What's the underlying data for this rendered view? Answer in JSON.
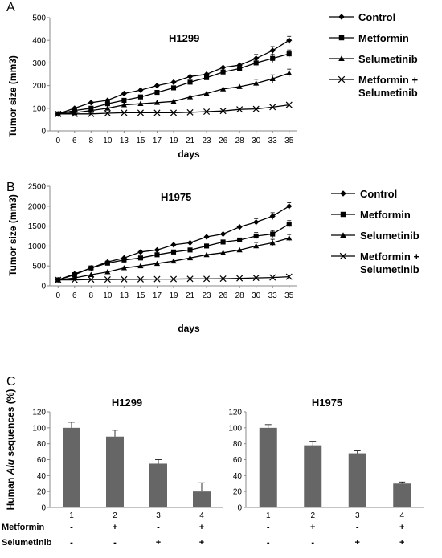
{
  "panels": [
    "A",
    "B",
    "C"
  ],
  "legend": {
    "control": "Control",
    "metformin": "Metformin",
    "selumetinib": "Selumetinib",
    "combo_line1": "Metformin +",
    "combo_line2": "Selumetinib"
  },
  "growth_days": [
    "0",
    "6",
    "8",
    "10",
    "13",
    "15",
    "17",
    "19",
    "21",
    "23",
    "26",
    "28",
    "30",
    "33",
    "35"
  ],
  "chart_data": [
    {
      "type": "line",
      "panel": "A",
      "title": "H1299",
      "xlabel": "days",
      "ylabel": "Tumor size (mm3)",
      "ylim": [
        0,
        500
      ],
      "yticks": [
        0,
        100,
        200,
        300,
        400,
        500
      ],
      "legend_position": "right",
      "series": [
        {
          "name": "Control",
          "marker": "diamond",
          "values": [
            75,
            100,
            125,
            135,
            165,
            180,
            200,
            215,
            240,
            250,
            280,
            290,
            320,
            355,
            400
          ]
        },
        {
          "name": "Metformin",
          "marker": "square",
          "values": [
            75,
            90,
            100,
            120,
            135,
            150,
            170,
            190,
            215,
            235,
            260,
            275,
            300,
            320,
            340
          ]
        },
        {
          "name": "Selumetinib",
          "marker": "triangle",
          "values": [
            75,
            80,
            90,
            100,
            115,
            120,
            125,
            130,
            150,
            165,
            185,
            195,
            210,
            230,
            255
          ]
        },
        {
          "name": "Metformin + Selumetinib",
          "marker": "x",
          "values": [
            75,
            75,
            75,
            78,
            80,
            80,
            80,
            80,
            82,
            85,
            88,
            95,
            97,
            105,
            115
          ]
        }
      ]
    },
    {
      "type": "line",
      "panel": "B",
      "title": "H1975",
      "xlabel": "days",
      "ylabel": "Tumor size (mm3)",
      "ylim": [
        0,
        2500
      ],
      "yticks": [
        0,
        500,
        1000,
        1500,
        2000,
        2500
      ],
      "legend_position": "right",
      "series": [
        {
          "name": "Control",
          "marker": "diamond",
          "values": [
            150,
            300,
            450,
            600,
            700,
            850,
            900,
            1030,
            1080,
            1230,
            1300,
            1480,
            1600,
            1750,
            2000
          ]
        },
        {
          "name": "Metformin",
          "marker": "square",
          "values": [
            150,
            280,
            450,
            570,
            650,
            700,
            780,
            850,
            900,
            1000,
            1100,
            1150,
            1250,
            1300,
            1550
          ]
        },
        {
          "name": "Selumetinib",
          "marker": "triangle",
          "values": [
            150,
            200,
            280,
            350,
            450,
            500,
            560,
            620,
            700,
            780,
            830,
            900,
            1000,
            1080,
            1200
          ]
        },
        {
          "name": "Metformin + Selumetinib",
          "marker": "x",
          "values": [
            150,
            150,
            160,
            160,
            165,
            165,
            170,
            170,
            175,
            175,
            180,
            190,
            200,
            210,
            230
          ]
        }
      ]
    },
    {
      "type": "bar",
      "panel": "C",
      "title": "H1299",
      "ylabel": "Human Alu sequences (%)",
      "ylim": [
        0,
        120
      ],
      "yticks": [
        0,
        20,
        40,
        60,
        80,
        100,
        120
      ],
      "categories": [
        "1",
        "2",
        "3",
        "4"
      ],
      "values": [
        100,
        89,
        55,
        20
      ],
      "errors": [
        7,
        8,
        5,
        11
      ]
    },
    {
      "type": "bar",
      "panel": "C",
      "title": "H1975",
      "ylim": [
        0,
        120
      ],
      "yticks": [
        0,
        20,
        40,
        60,
        80,
        100,
        120
      ],
      "categories": [
        "1",
        "2",
        "3",
        "4"
      ],
      "values": [
        100,
        78,
        68,
        30
      ],
      "errors": [
        4,
        5,
        3,
        2
      ]
    }
  ],
  "treatment_table": {
    "metformin_label": "Metformin",
    "selumetinib_label": "Selumetinib",
    "metformin_signs": [
      "-",
      "+",
      "-",
      "+"
    ],
    "selumetinib_signs": [
      "-",
      "-",
      "+",
      "+"
    ]
  },
  "colors": {
    "line": "#000000",
    "bar": "#666666",
    "axis": "#888888"
  }
}
